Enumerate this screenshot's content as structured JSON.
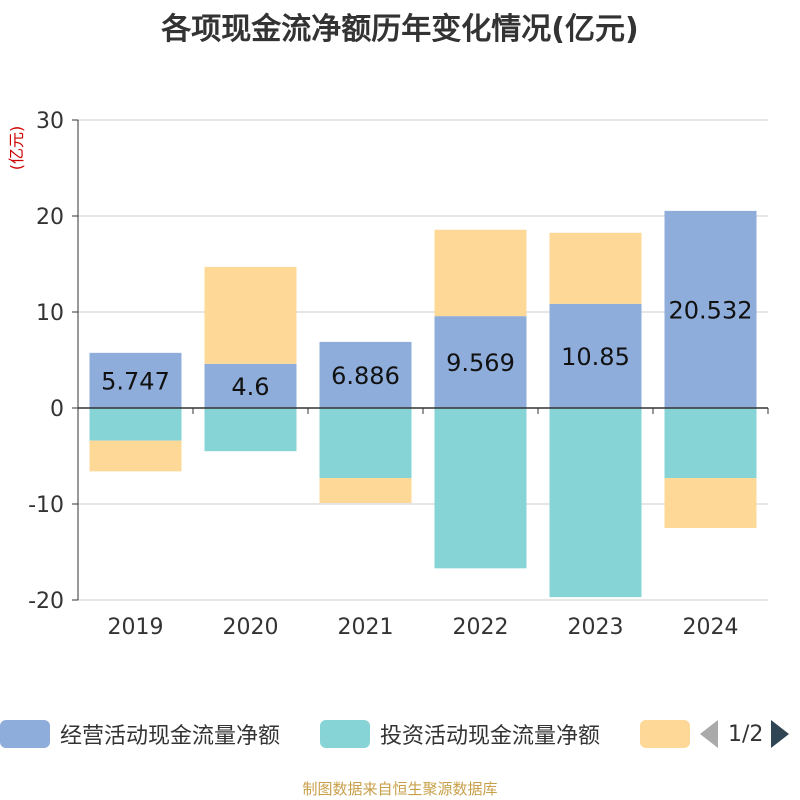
{
  "title": "各项现金流净额历年变化情况(亿元)",
  "footer": "制图数据来自恒生聚源数据库",
  "legend_page": "1/2",
  "colors": {
    "operating": "#8eaddb",
    "investing": "#87d4d6",
    "financing": "#fdd896",
    "axis": "#333333",
    "grid": "#cccccc",
    "unit": "#cc0000"
  },
  "chart_data": {
    "type": "bar",
    "stacked": true,
    "title": "各项现金流净额历年变化情况(亿元)",
    "ylabel": "(亿元)",
    "categories": [
      "2019",
      "2020",
      "2021",
      "2022",
      "2023",
      "2024"
    ],
    "ylim": [
      -20,
      30
    ],
    "yticks": [
      -20,
      -10,
      0,
      10,
      20,
      30
    ],
    "grid": true,
    "legend_position": "bottom",
    "series": [
      {
        "name": "经营活动现金流量净额",
        "color_key": "operating",
        "values": [
          5.747,
          4.6,
          6.886,
          9.569,
          10.85,
          20.532
        ],
        "show_labels": true,
        "labels": [
          "5.747",
          "4.6",
          "6.886",
          "9.569",
          "10.85",
          "20.532"
        ]
      },
      {
        "name": "投资活动现金流量净额",
        "color_key": "investing",
        "values": [
          -3.4,
          -4.5,
          -7.3,
          -16.7,
          -19.7,
          -7.3
        ],
        "show_labels": false
      },
      {
        "name": "",
        "color_key": "financing",
        "values": [
          -3.2,
          10.1,
          -2.6,
          9.0,
          7.4,
          -5.2
        ],
        "show_labels": false
      }
    ]
  }
}
